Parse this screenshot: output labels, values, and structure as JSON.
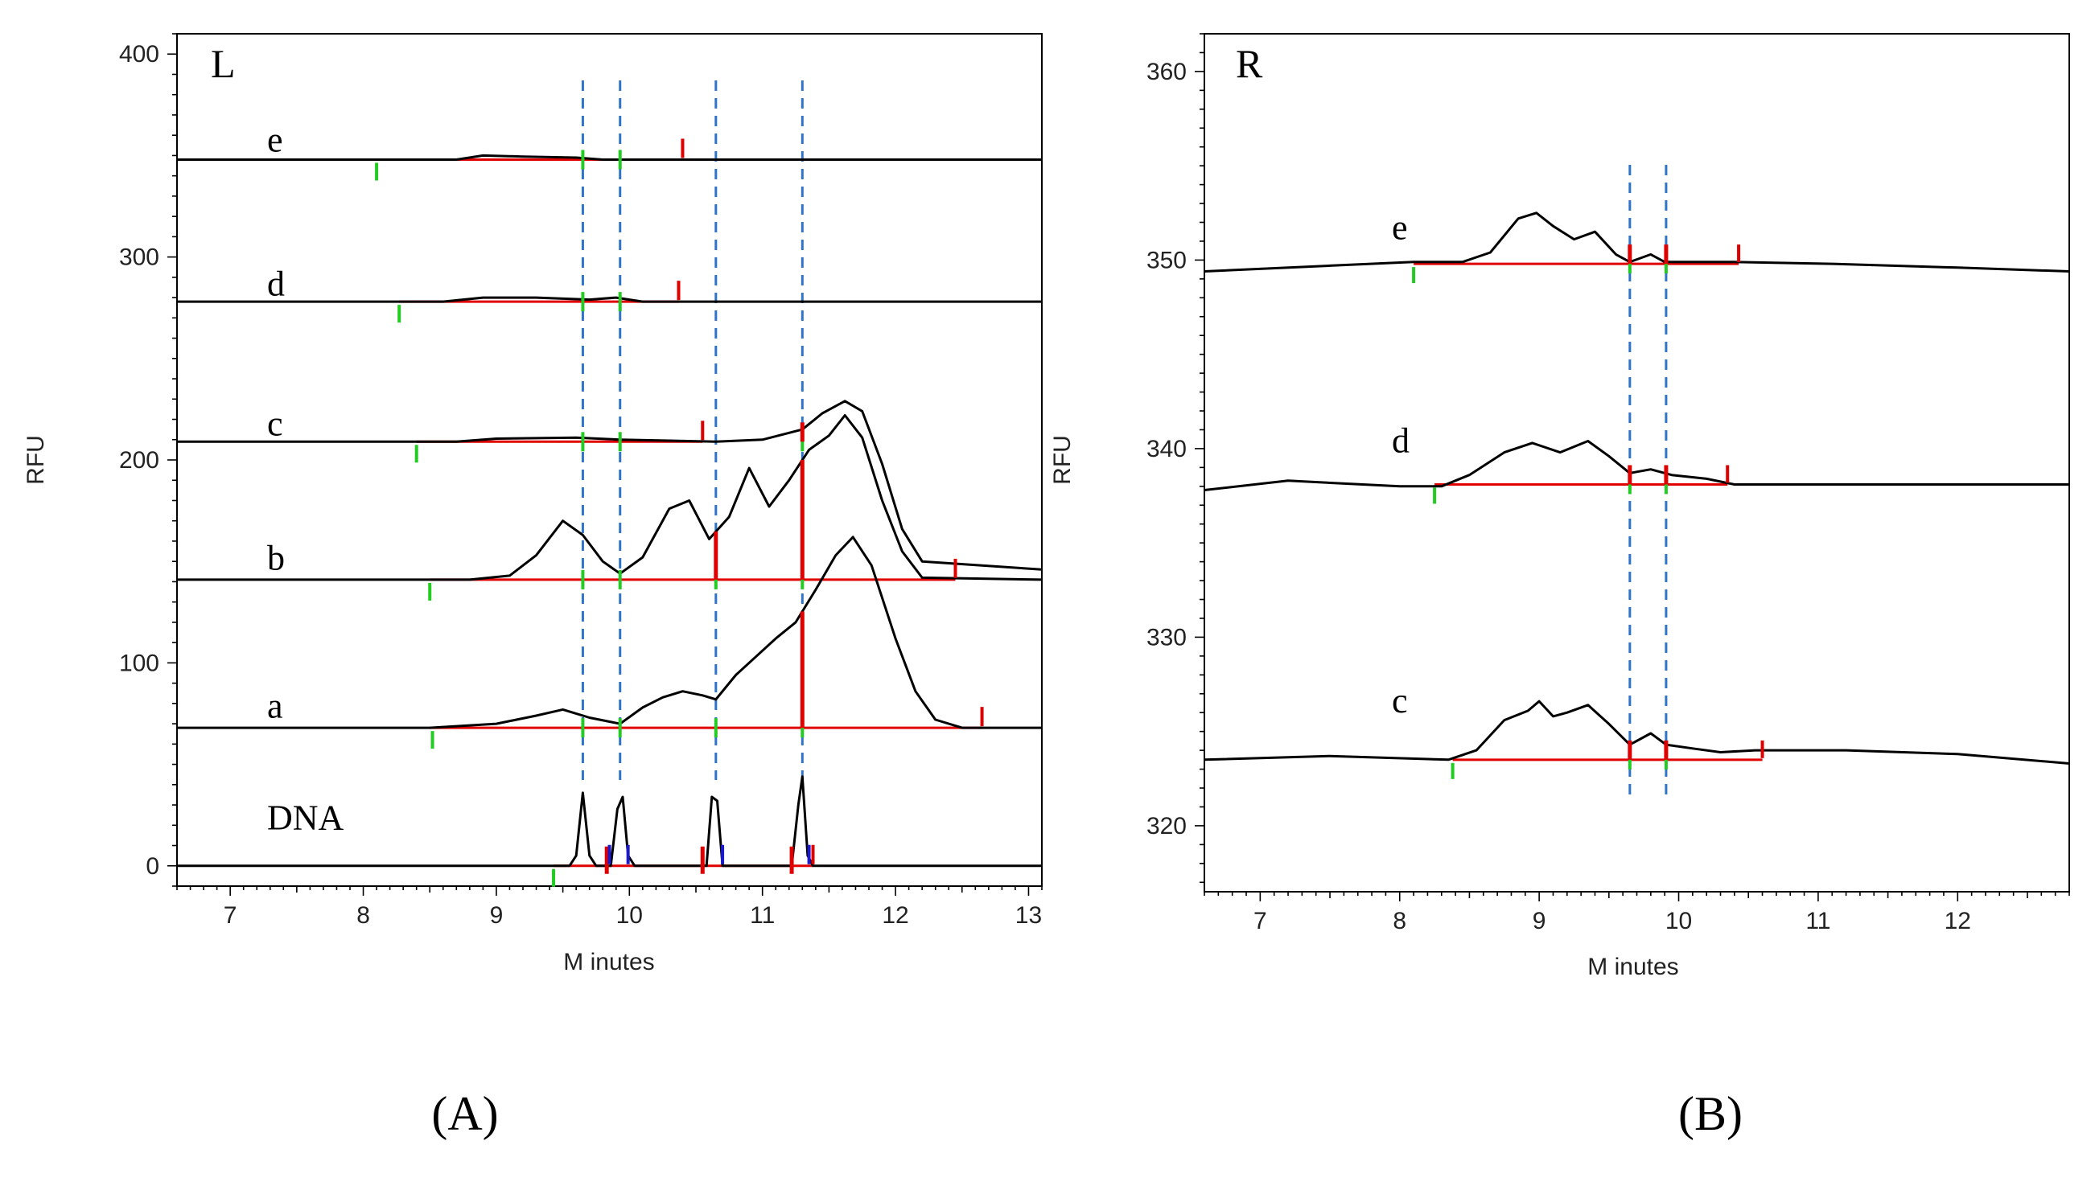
{
  "colors": {
    "trace": "#000000",
    "integration": "#e00000",
    "peak_start": "#22cc22",
    "dna_marker": "#1a1acc",
    "reference_line": "#2f74c9"
  },
  "panels": {
    "left": {
      "letter": "(A)",
      "corner": "L"
    },
    "right": {
      "letter": "(B)",
      "corner": "R"
    }
  },
  "chart_data": [
    {
      "type": "line",
      "id": "L",
      "title": "L",
      "xlabel": "M inutes",
      "ylabel": "RFU",
      "xlim": [
        6.6,
        13.1
      ],
      "ylim": [
        -10,
        410
      ],
      "x_ticks": [
        7,
        8,
        9,
        10,
        11,
        12,
        13
      ],
      "y_ticks": [
        0,
        100,
        200,
        300,
        400
      ],
      "reference_lines_x": [
        9.65,
        9.93,
        10.65,
        11.3
      ],
      "series": [
        {
          "name": "e",
          "baseline": 348,
          "label_at": [
            9.0,
            352
          ],
          "points": [
            [
              6.6,
              348
            ],
            [
              8.7,
              348
            ],
            [
              8.9,
              350
            ],
            [
              9.2,
              349.5
            ],
            [
              9.6,
              349
            ],
            [
              9.8,
              348
            ],
            [
              10.4,
              348
            ],
            [
              11.2,
              348
            ],
            [
              11.5,
              348
            ],
            [
              13.1,
              348
            ]
          ],
          "integration": {
            "start": 8.1,
            "end": 10.4,
            "start_mark": 8.1,
            "end_mark": 10.4,
            "green_marks": [
              9.65,
              9.93
            ],
            "red_splits": []
          }
        },
        {
          "name": "d",
          "baseline": 278,
          "label_at": [
            9.0,
            281
          ],
          "points": [
            [
              6.6,
              278
            ],
            [
              8.6,
              278
            ],
            [
              8.9,
              280
            ],
            [
              9.3,
              280
            ],
            [
              9.7,
              279
            ],
            [
              9.9,
              280
            ],
            [
              10.1,
              278
            ],
            [
              13.1,
              278
            ]
          ],
          "integration": {
            "start": 8.27,
            "end": 10.37,
            "start_mark": 8.27,
            "end_mark": 10.37,
            "green_marks": [
              9.65,
              9.93
            ],
            "red_splits": []
          }
        },
        {
          "name": "c",
          "baseline": 209,
          "label_at": [
            9.0,
            212
          ],
          "points": [
            [
              6.6,
              209
            ],
            [
              8.7,
              209
            ],
            [
              9.0,
              210.5
            ],
            [
              9.6,
              211
            ],
            [
              9.93,
              210
            ],
            [
              10.3,
              209.5
            ],
            [
              10.65,
              209
            ],
            [
              11.0,
              210
            ],
            [
              11.3,
              215
            ],
            [
              11.45,
              223
            ],
            [
              11.62,
              229
            ],
            [
              11.75,
              224
            ],
            [
              11.9,
              198
            ],
            [
              12.05,
              166
            ],
            [
              12.2,
              150
            ],
            [
              13.1,
              146
            ]
          ],
          "integration": {
            "start": 8.4,
            "end": 10.55,
            "start_mark": 8.4,
            "end_mark": 10.55,
            "green_marks": [
              9.65,
              9.93,
              11.3
            ],
            "red_splits": [
              11.3
            ]
          }
        },
        {
          "name": "b",
          "baseline": 141,
          "label_at": [
            9.0,
            146
          ],
          "points": [
            [
              6.6,
              141
            ],
            [
              8.8,
              141
            ],
            [
              9.1,
              143
            ],
            [
              9.3,
              153
            ],
            [
              9.5,
              170
            ],
            [
              9.65,
              163
            ],
            [
              9.8,
              150
            ],
            [
              9.93,
              144
            ],
            [
              10.1,
              152
            ],
            [
              10.3,
              176
            ],
            [
              10.45,
              180
            ],
            [
              10.6,
              161
            ],
            [
              10.75,
              172
            ],
            [
              10.9,
              196
            ],
            [
              11.05,
              177
            ],
            [
              11.2,
              190
            ],
            [
              11.35,
              205
            ],
            [
              11.5,
              212
            ],
            [
              11.62,
              222
            ],
            [
              11.75,
              211
            ],
            [
              11.9,
              180
            ],
            [
              12.05,
              155
            ],
            [
              12.2,
              142
            ],
            [
              13.1,
              141
            ]
          ],
          "integration": {
            "start": 8.5,
            "end": 12.45,
            "start_mark": 8.5,
            "end_mark": 12.45,
            "green_marks": [
              9.65,
              9.93,
              10.65,
              11.3
            ],
            "red_splits": [
              10.65,
              11.3
            ]
          }
        },
        {
          "name": "a",
          "baseline": 68,
          "label_at": [
            9.0,
            73
          ],
          "points": [
            [
              6.6,
              68
            ],
            [
              8.5,
              68
            ],
            [
              9.0,
              70
            ],
            [
              9.3,
              74
            ],
            [
              9.5,
              77
            ],
            [
              9.7,
              73
            ],
            [
              9.93,
              70
            ],
            [
              10.1,
              78
            ],
            [
              10.25,
              83
            ],
            [
              10.4,
              86
            ],
            [
              10.55,
              84
            ],
            [
              10.65,
              82
            ],
            [
              10.8,
              94
            ],
            [
              10.95,
              103
            ],
            [
              11.1,
              112
            ],
            [
              11.25,
              120
            ],
            [
              11.4,
              136
            ],
            [
              11.55,
              153
            ],
            [
              11.68,
              162
            ],
            [
              11.82,
              148
            ],
            [
              12.0,
              112
            ],
            [
              12.15,
              86
            ],
            [
              12.3,
              72
            ],
            [
              12.5,
              68
            ],
            [
              13.1,
              68
            ]
          ],
          "integration": {
            "start": 8.5,
            "end": 12.65,
            "start_mark": 8.52,
            "end_mark": 12.65,
            "green_marks": [
              9.65,
              9.93,
              10.65,
              11.3
            ],
            "red_splits": [
              11.3
            ]
          }
        },
        {
          "name": "DNA",
          "baseline": 0,
          "label_at": [
            9.0,
            18
          ],
          "points": [
            [
              6.6,
              0
            ],
            [
              9.55,
              0
            ],
            [
              9.6,
              5
            ],
            [
              9.65,
              36
            ],
            [
              9.7,
              5
            ],
            [
              9.75,
              0
            ],
            [
              9.86,
              0
            ],
            [
              9.91,
              28
            ],
            [
              9.95,
              34
            ],
            [
              9.99,
              5
            ],
            [
              10.04,
              0
            ],
            [
              10.58,
              0
            ],
            [
              10.62,
              34
            ],
            [
              10.66,
              32
            ],
            [
              10.7,
              0
            ],
            [
              11.22,
              0
            ],
            [
              11.27,
              30
            ],
            [
              11.3,
              44
            ],
            [
              11.34,
              5
            ],
            [
              11.38,
              0
            ],
            [
              13.1,
              0
            ]
          ],
          "integration": {
            "start": 9.43,
            "end": 11.38,
            "start_mark": 9.43,
            "end_mark": 11.38,
            "green_marks": [],
            "red_splits": [
              9.83,
              10.55,
              11.22
            ],
            "blue_marks": [
              9.85,
              9.99,
              10.7,
              11.35
            ]
          }
        }
      ]
    },
    {
      "type": "line",
      "id": "R",
      "title": "R",
      "xlabel": "M inutes",
      "ylabel": "RFU",
      "xlim": [
        6.6,
        12.8
      ],
      "ylim": [
        316.5,
        362
      ],
      "x_ticks": [
        7,
        8,
        9,
        10,
        11,
        12
      ],
      "y_ticks": [
        320,
        330,
        340,
        350,
        360
      ],
      "reference_lines_x": [
        9.65,
        9.91
      ],
      "series": [
        {
          "name": "e",
          "baseline": 349.8,
          "label_at": [
            8.9,
            351.1
          ],
          "points": [
            [
              6.6,
              349.4
            ],
            [
              7.5,
              349.7
            ],
            [
              8.1,
              349.9
            ],
            [
              8.45,
              349.9
            ],
            [
              8.65,
              350.4
            ],
            [
              8.85,
              352.2
            ],
            [
              8.98,
              352.5
            ],
            [
              9.1,
              351.8
            ],
            [
              9.25,
              351.1
            ],
            [
              9.4,
              351.5
            ],
            [
              9.55,
              350.3
            ],
            [
              9.65,
              349.9
            ],
            [
              9.8,
              350.3
            ],
            [
              9.9,
              349.9
            ],
            [
              10.4,
              349.9
            ],
            [
              11.1,
              349.8
            ],
            [
              12.0,
              349.6
            ],
            [
              12.8,
              349.4
            ]
          ],
          "integration": {
            "start": 8.1,
            "end": 10.43,
            "start_mark": 8.1,
            "end_mark": 10.43,
            "green_marks": [
              9.65,
              9.91
            ],
            "red_splits": [
              9.65,
              9.91
            ]
          }
        },
        {
          "name": "d",
          "baseline": 338.1,
          "label_at": [
            8.9,
            339.8
          ],
          "points": [
            [
              6.6,
              337.8
            ],
            [
              7.2,
              338.3
            ],
            [
              8.0,
              338.0
            ],
            [
              8.3,
              338.0
            ],
            [
              8.5,
              338.6
            ],
            [
              8.75,
              339.8
            ],
            [
              8.95,
              340.3
            ],
            [
              9.15,
              339.8
            ],
            [
              9.35,
              340.4
            ],
            [
              9.5,
              339.6
            ],
            [
              9.65,
              338.7
            ],
            [
              9.8,
              338.9
            ],
            [
              9.95,
              338.6
            ],
            [
              10.2,
              338.4
            ],
            [
              10.4,
              338.1
            ],
            [
              11.1,
              338.1
            ],
            [
              12.8,
              338.1
            ]
          ],
          "integration": {
            "start": 8.25,
            "end": 10.35,
            "start_mark": 8.25,
            "end_mark": 10.35,
            "green_marks": [
              9.65,
              9.91
            ],
            "red_splits": [
              9.65,
              9.91
            ]
          }
        },
        {
          "name": "c",
          "baseline": 323.5,
          "label_at": [
            8.9,
            326.0
          ],
          "points": [
            [
              6.6,
              323.5
            ],
            [
              7.5,
              323.7
            ],
            [
              8.35,
              323.5
            ],
            [
              8.55,
              324.0
            ],
            [
              8.75,
              325.6
            ],
            [
              8.92,
              326.1
            ],
            [
              9.0,
              326.6
            ],
            [
              9.1,
              325.8
            ],
            [
              9.2,
              326.0
            ],
            [
              9.35,
              326.4
            ],
            [
              9.5,
              325.4
            ],
            [
              9.65,
              324.3
            ],
            [
              9.8,
              324.9
            ],
            [
              9.91,
              324.3
            ],
            [
              10.1,
              324.1
            ],
            [
              10.3,
              323.9
            ],
            [
              10.55,
              324.0
            ],
            [
              11.2,
              324.0
            ],
            [
              12.0,
              323.8
            ],
            [
              12.8,
              323.3
            ]
          ],
          "integration": {
            "start": 8.38,
            "end": 10.6,
            "start_mark": 8.38,
            "end_mark": 10.6,
            "green_marks": [
              9.65,
              9.91
            ],
            "red_splits": [
              9.65,
              9.91
            ]
          }
        }
      ]
    }
  ]
}
